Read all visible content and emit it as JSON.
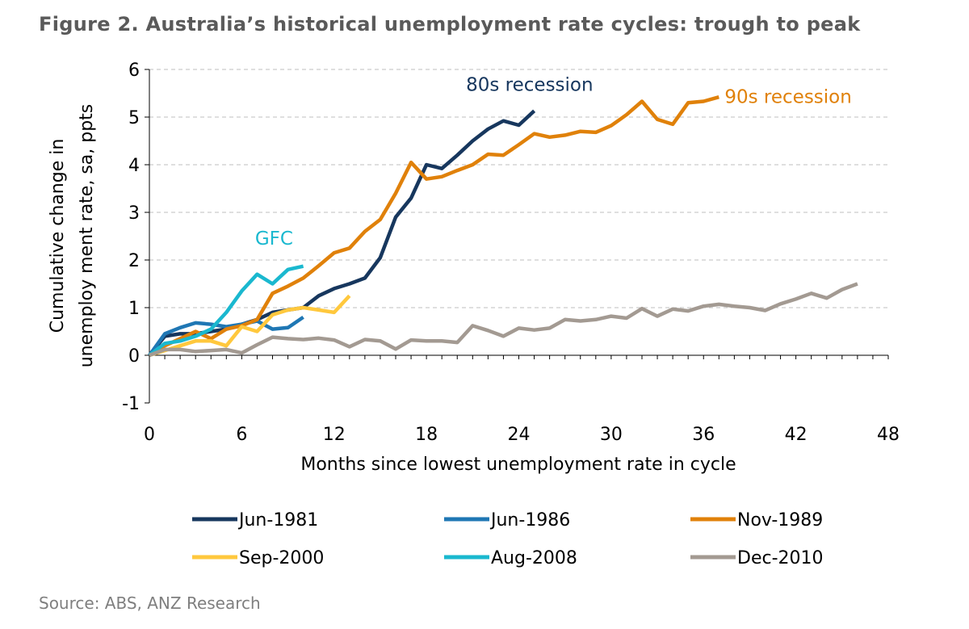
{
  "figure": {
    "title": "Figure 2. Australia’s historical unemployment rate cycles: trough to peak",
    "source": "Source: ABS, ANZ Research"
  },
  "chart_data": {
    "type": "line",
    "title": "Figure 2. Australia’s historical unemployment rate cycles: trough to peak",
    "xlabel": "Months since lowest unemployment  rate in cycle",
    "ylabel_lines": [
      "Cumulative  change in",
      "unemploy ment  rate, sa, ppts"
    ],
    "xlim": [
      0,
      48
    ],
    "ylim": [
      -1,
      6
    ],
    "xticks": [
      0,
      6,
      12,
      18,
      24,
      30,
      36,
      42,
      48
    ],
    "yticks": [
      -1,
      0,
      1,
      2,
      3,
      4,
      5,
      6
    ],
    "legend_position": "bottom",
    "series": [
      {
        "name": "Jun-1981",
        "color": "#17375e",
        "values": [
          0,
          0.4,
          0.45,
          0.45,
          0.5,
          0.55,
          0.65,
          0.75,
          0.9,
          0.95,
          1.0,
          1.25,
          1.4,
          1.5,
          1.62,
          2.05,
          2.9,
          3.3,
          4.0,
          3.92,
          4.2,
          4.5,
          4.75,
          4.92,
          4.83,
          5.13
        ]
      },
      {
        "name": "Jun-1986",
        "color": "#1f77b4",
        "values": [
          0,
          0.45,
          0.58,
          0.68,
          0.65,
          0.6,
          0.65,
          0.72,
          0.55,
          0.58,
          0.8
        ]
      },
      {
        "name": "Nov-1989",
        "color": "#e0810a",
        "values": [
          0,
          0.2,
          0.35,
          0.5,
          0.35,
          0.55,
          0.62,
          0.75,
          1.3,
          1.45,
          1.62,
          1.88,
          2.15,
          2.25,
          2.6,
          2.85,
          3.4,
          4.05,
          3.7,
          3.75,
          3.88,
          4.0,
          4.22,
          4.2,
          4.42,
          4.65,
          4.58,
          4.62,
          4.7,
          4.68,
          4.82,
          5.05,
          5.33,
          4.95,
          4.85,
          5.3,
          5.33,
          5.42
        ]
      },
      {
        "name": "Sep-2000",
        "color": "#ffc83d",
        "values": [
          0,
          0.1,
          0.2,
          0.3,
          0.3,
          0.2,
          0.6,
          0.5,
          0.85,
          0.95,
          1.0,
          0.95,
          0.9,
          1.25
        ]
      },
      {
        "name": "Aug-2008",
        "color": "#1ab8cf",
        "values": [
          0,
          0.25,
          0.3,
          0.4,
          0.55,
          0.9,
          1.35,
          1.7,
          1.5,
          1.8,
          1.87
        ]
      },
      {
        "name": "Dec-2010",
        "color": "#a39a92",
        "values": [
          0,
          0.12,
          0.12,
          0.08,
          0.1,
          0.12,
          0.05,
          0.22,
          0.38,
          0.35,
          0.33,
          0.36,
          0.32,
          0.18,
          0.33,
          0.3,
          0.13,
          0.32,
          0.3,
          0.3,
          0.27,
          0.62,
          0.52,
          0.4,
          0.57,
          0.53,
          0.57,
          0.75,
          0.72,
          0.75,
          0.82,
          0.78,
          0.98,
          0.82,
          0.97,
          0.93,
          1.03,
          1.07,
          1.03,
          1.0,
          0.94,
          1.08,
          1.18,
          1.3,
          1.2,
          1.38,
          1.5
        ]
      }
    ],
    "annotations": [
      {
        "text": "80s recession",
        "x": 24.7,
        "y": 5.55,
        "color": "#17375e"
      },
      {
        "text": "90s recession",
        "x": 41.5,
        "y": 5.3,
        "color": "#e0810a"
      },
      {
        "text": "GFC",
        "x": 8.1,
        "y": 2.32,
        "color": "#1ab8cf"
      }
    ]
  }
}
